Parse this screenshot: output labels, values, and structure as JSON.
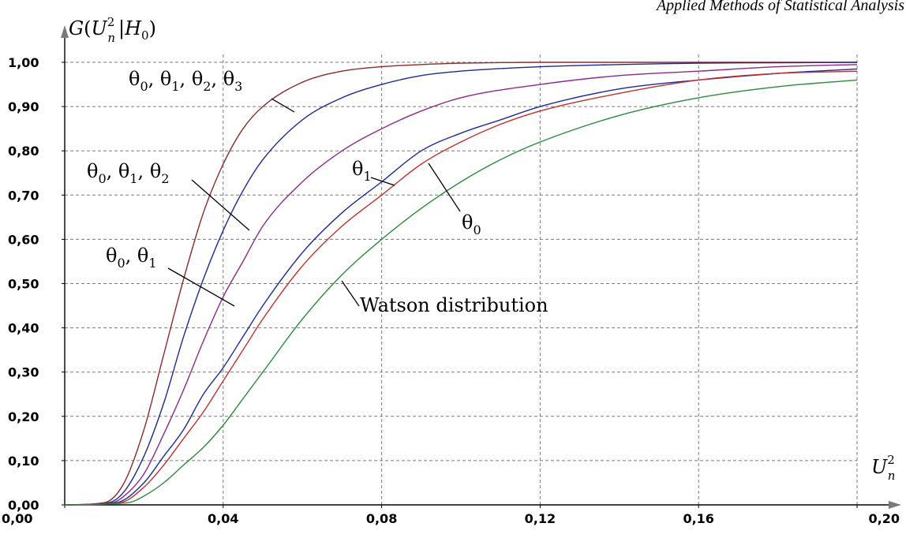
{
  "chart_data": {
    "type": "line",
    "header_text": "Applied Methods of Statistical Analysis",
    "ylabel": {
      "main": "G(U",
      "sup": "2",
      "sub": "n",
      "rest": "|H",
      "rest_sub": "0",
      "close": ")"
    },
    "xlabel": {
      "main": "U",
      "sup": "2",
      "sub": "n"
    },
    "xlim": [
      0.0,
      0.2
    ],
    "ylim": [
      0.0,
      1.0
    ],
    "xticks": [
      0.0,
      0.04,
      0.08,
      0.12,
      0.16,
      0.2
    ],
    "xtick_labels": [
      "0,00",
      "0,04",
      "0,08",
      "0,12",
      "0,16",
      "0,20"
    ],
    "yticks": [
      0.0,
      0.1,
      0.2,
      0.3,
      0.4,
      0.5,
      0.6,
      0.7,
      0.8,
      0.9,
      1.0
    ],
    "ytick_labels": [
      "0,00",
      "0,10",
      "0,20",
      "0,30",
      "0,40",
      "0,50",
      "0,60",
      "0,70",
      "0,80",
      "0,90",
      "1,00"
    ],
    "grid": true,
    "series": [
      {
        "id": "s4",
        "name": "θ0, θ1, θ2, θ3",
        "color": "#8b2a2a",
        "x": [
          0.0,
          0.01,
          0.015,
          0.02,
          0.025,
          0.03,
          0.035,
          0.04,
          0.045,
          0.05,
          0.06,
          0.07,
          0.08,
          0.09,
          0.1,
          0.12,
          0.14,
          0.16,
          0.18,
          0.2
        ],
        "y": [
          0.0,
          0.005,
          0.05,
          0.17,
          0.34,
          0.51,
          0.66,
          0.77,
          0.85,
          0.9,
          0.955,
          0.98,
          0.99,
          0.995,
          0.998,
          1.0,
          1.0,
          1.0,
          1.0,
          1.0
        ]
      },
      {
        "id": "s3",
        "name": "θ0, θ1, θ2",
        "color": "#1e2a8a",
        "x": [
          0.0,
          0.011,
          0.015,
          0.02,
          0.025,
          0.03,
          0.035,
          0.04,
          0.045,
          0.05,
          0.06,
          0.07,
          0.08,
          0.09,
          0.1,
          0.12,
          0.14,
          0.16,
          0.18,
          0.2
        ],
        "y": [
          0.0,
          0.005,
          0.03,
          0.11,
          0.23,
          0.38,
          0.51,
          0.62,
          0.71,
          0.78,
          0.87,
          0.92,
          0.95,
          0.97,
          0.98,
          0.99,
          0.995,
          0.998,
          0.999,
          1.0
        ]
      },
      {
        "id": "s2",
        "name": "θ0, θ1",
        "color": "#8a2a8a",
        "x": [
          0.0,
          0.012,
          0.015,
          0.02,
          0.025,
          0.03,
          0.035,
          0.04,
          0.045,
          0.05,
          0.06,
          0.07,
          0.08,
          0.09,
          0.1,
          0.12,
          0.14,
          0.16,
          0.18,
          0.2
        ],
        "y": [
          0.0,
          0.005,
          0.02,
          0.07,
          0.16,
          0.26,
          0.37,
          0.47,
          0.55,
          0.63,
          0.73,
          0.8,
          0.85,
          0.89,
          0.92,
          0.95,
          0.97,
          0.98,
          0.99,
          0.995
        ]
      },
      {
        "id": "s1",
        "name": "θ1",
        "color": "#1c2a9a",
        "x": [
          0.0,
          0.013,
          0.02,
          0.025,
          0.03,
          0.035,
          0.04,
          0.045,
          0.05,
          0.06,
          0.07,
          0.08,
          0.09,
          0.1,
          0.11,
          0.12,
          0.14,
          0.16,
          0.18,
          0.2
        ],
        "y": [
          0.0,
          0.005,
          0.05,
          0.11,
          0.17,
          0.25,
          0.31,
          0.38,
          0.45,
          0.57,
          0.66,
          0.73,
          0.8,
          0.84,
          0.87,
          0.9,
          0.94,
          0.96,
          0.975,
          0.985
        ]
      },
      {
        "id": "s0",
        "name": "θ0",
        "color": "#c03030",
        "x": [
          0.0,
          0.014,
          0.02,
          0.025,
          0.03,
          0.035,
          0.04,
          0.045,
          0.05,
          0.06,
          0.07,
          0.08,
          0.09,
          0.1,
          0.11,
          0.12,
          0.14,
          0.16,
          0.18,
          0.2
        ],
        "y": [
          0.0,
          0.005,
          0.04,
          0.09,
          0.15,
          0.21,
          0.28,
          0.35,
          0.42,
          0.54,
          0.63,
          0.7,
          0.77,
          0.82,
          0.86,
          0.89,
          0.93,
          0.96,
          0.975,
          0.98
        ]
      },
      {
        "id": "sw",
        "name": "Watson distribution",
        "color": "#2a8a3a",
        "x": [
          0.0,
          0.016,
          0.02,
          0.025,
          0.03,
          0.035,
          0.04,
          0.045,
          0.05,
          0.06,
          0.07,
          0.08,
          0.09,
          0.1,
          0.11,
          0.12,
          0.14,
          0.16,
          0.18,
          0.2
        ],
        "y": [
          0.0,
          0.005,
          0.02,
          0.05,
          0.09,
          0.13,
          0.18,
          0.24,
          0.3,
          0.42,
          0.52,
          0.6,
          0.67,
          0.73,
          0.78,
          0.82,
          0.88,
          0.92,
          0.945,
          0.96
        ]
      }
    ],
    "annotations": [
      {
        "id": "a4",
        "prefix": "θ",
        "subs": [
          "0",
          "1",
          "2",
          "3"
        ]
      },
      {
        "id": "a3",
        "prefix": "θ",
        "subs": [
          "0",
          "1",
          "2"
        ]
      },
      {
        "id": "a2",
        "prefix": "θ",
        "subs": [
          "0",
          "1"
        ]
      },
      {
        "id": "a1",
        "prefix": "θ",
        "subs": [
          "1"
        ]
      },
      {
        "id": "a0",
        "prefix": "θ",
        "subs": [
          "0"
        ]
      },
      {
        "id": "aw",
        "text": "Watson distribution"
      }
    ]
  }
}
